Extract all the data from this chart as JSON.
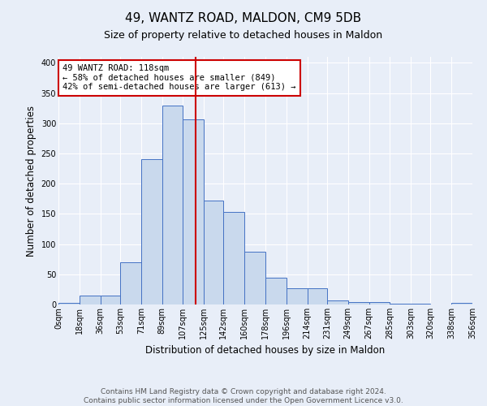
{
  "title": "49, WANTZ ROAD, MALDON, CM9 5DB",
  "subtitle": "Size of property relative to detached houses in Maldon",
  "xlabel": "Distribution of detached houses by size in Maldon",
  "ylabel": "Number of detached properties",
  "bin_edges": [
    0,
    18,
    36,
    53,
    71,
    89,
    107,
    125,
    142,
    160,
    178,
    196,
    214,
    231,
    249,
    267,
    285,
    303,
    320,
    338,
    356
  ],
  "bin_labels": [
    "0sqm",
    "18sqm",
    "36sqm",
    "53sqm",
    "71sqm",
    "89sqm",
    "107sqm",
    "125sqm",
    "142sqm",
    "160sqm",
    "178sqm",
    "196sqm",
    "214sqm",
    "231sqm",
    "249sqm",
    "267sqm",
    "285sqm",
    "303sqm",
    "320sqm",
    "338sqm",
    "356sqm"
  ],
  "bar_heights": [
    3,
    15,
    15,
    70,
    240,
    330,
    307,
    172,
    153,
    87,
    45,
    27,
    27,
    7,
    4,
    4,
    2,
    2,
    0,
    3
  ],
  "bar_color": "#c9d9ed",
  "bar_edge_color": "#4472c4",
  "property_size": 118,
  "vline_color": "#cc0000",
  "annotation_text": "49 WANTZ ROAD: 118sqm\n← 58% of detached houses are smaller (849)\n42% of semi-detached houses are larger (613) →",
  "annotation_box_color": "#ffffff",
  "annotation_box_edge": "#cc0000",
  "ylim": [
    0,
    410
  ],
  "yticks": [
    0,
    50,
    100,
    150,
    200,
    250,
    300,
    350,
    400
  ],
  "footer_text": "Contains HM Land Registry data © Crown copyright and database right 2024.\nContains public sector information licensed under the Open Government Licence v3.0.",
  "bg_color": "#e8eef8",
  "grid_color": "#ffffff",
  "title_fontsize": 11,
  "subtitle_fontsize": 9,
  "axis_label_fontsize": 8.5,
  "tick_fontsize": 7,
  "footer_fontsize": 6.5,
  "annotation_fontsize": 7.5
}
